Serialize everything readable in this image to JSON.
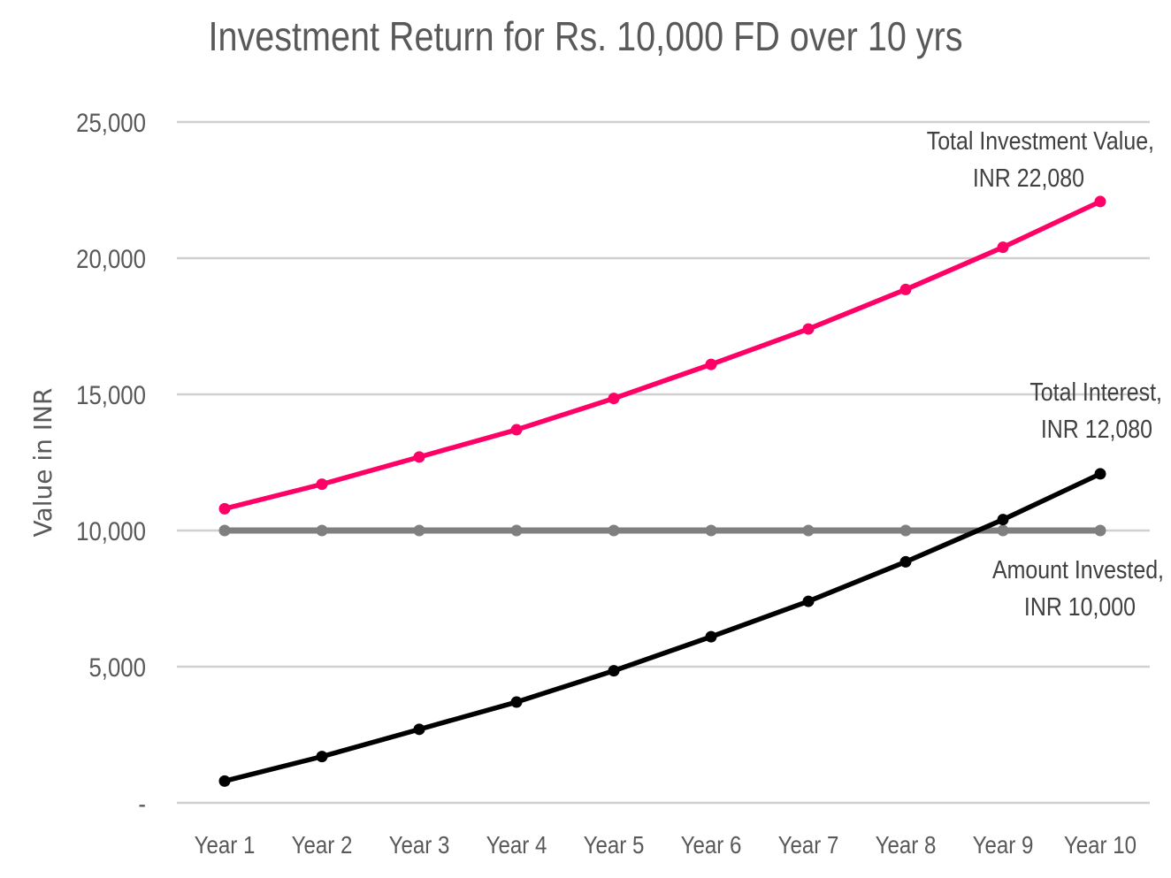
{
  "chart_data": {
    "type": "line",
    "title": "Investment Return for Rs. 10,000 FD over 10 yrs",
    "xlabel": "",
    "ylabel": "Value in INR",
    "categories": [
      "Year 1",
      "Year 2",
      "Year 3",
      "Year 4",
      "Year 5",
      "Year 6",
      "Year 7",
      "Year 8",
      "Year 9",
      "Year 10"
    ],
    "ylim": [
      0,
      25000
    ],
    "yticks": [
      {
        "value": 0,
        "label": "-"
      },
      {
        "value": 5000,
        "label": "5,000"
      },
      {
        "value": 10000,
        "label": "10,000"
      },
      {
        "value": 15000,
        "label": "15,000"
      },
      {
        "value": 20000,
        "label": "20,000"
      },
      {
        "value": 25000,
        "label": "25,000"
      }
    ],
    "grid": true,
    "legend": "none",
    "series": [
      {
        "key": "total",
        "color": "#ff0066",
        "values": [
          10800,
          11700,
          12700,
          13700,
          14850,
          16100,
          17400,
          18850,
          20400,
          22080
        ]
      },
      {
        "key": "invested",
        "color": "#7f7f7f",
        "values": [
          10000,
          10000,
          10000,
          10000,
          10000,
          10000,
          10000,
          10000,
          10000,
          10000
        ]
      },
      {
        "key": "interest",
        "color": "#000000",
        "values": [
          800,
          1700,
          2700,
          3700,
          4850,
          6100,
          7400,
          8850,
          10400,
          12080
        ]
      }
    ],
    "annotations": [
      {
        "series": "total",
        "lines": [
          "Total Investment Value,",
          "INR 22,080"
        ]
      },
      {
        "series": "interest",
        "lines": [
          "Total Interest,",
          "INR 12,080"
        ]
      },
      {
        "series": "invested",
        "lines": [
          "Amount Invested,",
          "INR 10,000"
        ]
      }
    ]
  }
}
